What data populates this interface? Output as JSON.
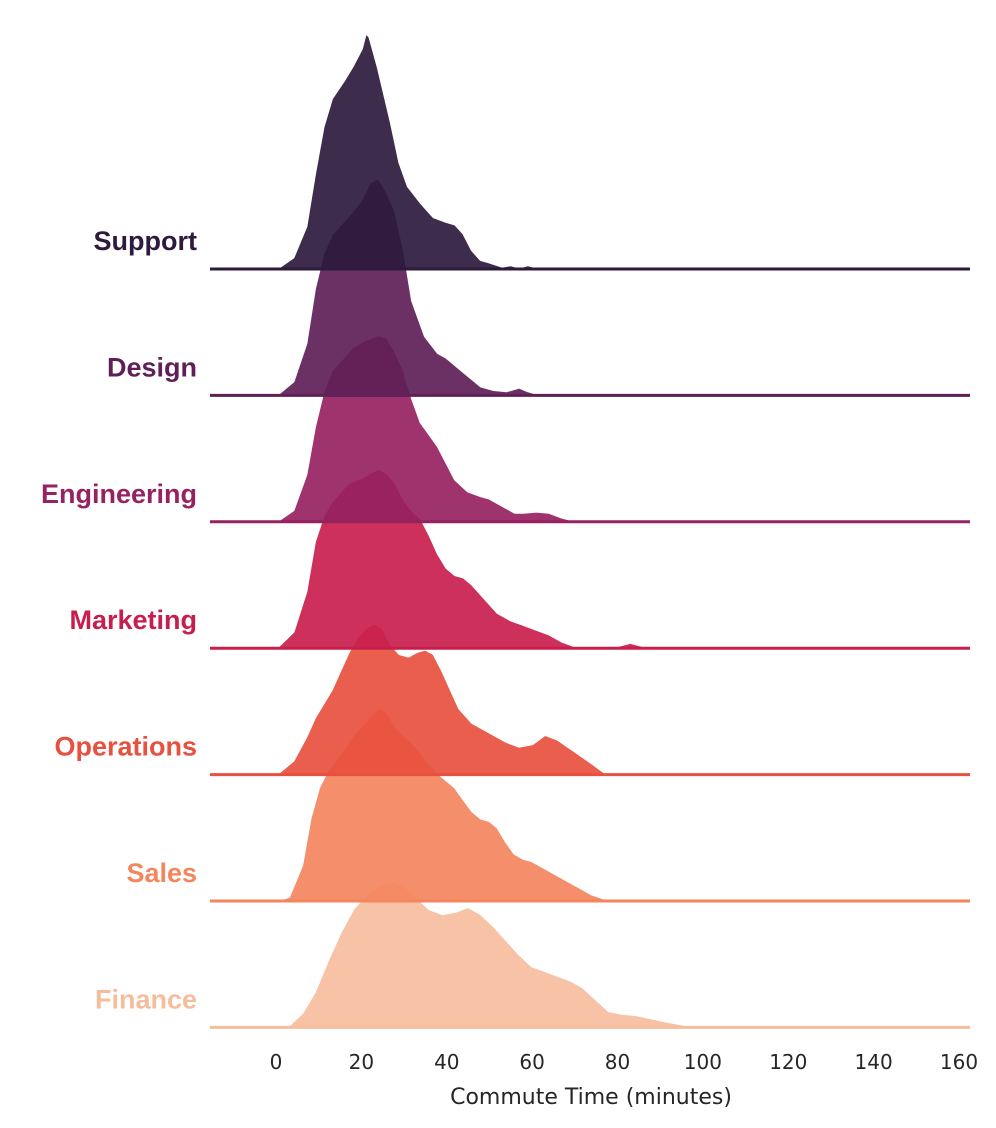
{
  "chart_data": {
    "type": "area",
    "subtype": "ridgeline-kde",
    "xlabel": "Commute Time (minutes)",
    "xlim": [
      -15,
      162
    ],
    "xticks": [
      0,
      20,
      40,
      60,
      80,
      100,
      120,
      140,
      160
    ],
    "y_density_max": 1.0,
    "grid": false,
    "legend": "none",
    "series": [
      {
        "name": "Support",
        "color": "#2d1a3c",
        "points": [
          [
            -15,
            0
          ],
          [
            0,
            0
          ],
          [
            4,
            0.05
          ],
          [
            7,
            0.18
          ],
          [
            9,
            0.4
          ],
          [
            11,
            0.6
          ],
          [
            13,
            0.72
          ],
          [
            16,
            0.8
          ],
          [
            18,
            0.86
          ],
          [
            20,
            0.93
          ],
          [
            21,
            1.0
          ],
          [
            22,
            0.98
          ],
          [
            24,
            0.85
          ],
          [
            27,
            0.62
          ],
          [
            29,
            0.45
          ],
          [
            31,
            0.35
          ],
          [
            34,
            0.28
          ],
          [
            37,
            0.22
          ],
          [
            40,
            0.2
          ],
          [
            42,
            0.19
          ],
          [
            44,
            0.15
          ],
          [
            46,
            0.08
          ],
          [
            48,
            0.04
          ],
          [
            50,
            0.03
          ],
          [
            53,
            0.012
          ],
          [
            55,
            0.018
          ],
          [
            57,
            0.008
          ],
          [
            59,
            0.018
          ],
          [
            62,
            0.004
          ],
          [
            64,
            0
          ],
          [
            162,
            0
          ]
        ]
      },
      {
        "name": "Design",
        "color": "#5f1f57",
        "points": [
          [
            -15,
            0
          ],
          [
            0,
            0
          ],
          [
            4,
            0.06
          ],
          [
            7,
            0.22
          ],
          [
            9,
            0.45
          ],
          [
            11,
            0.6
          ],
          [
            13,
            0.68
          ],
          [
            16,
            0.74
          ],
          [
            18,
            0.78
          ],
          [
            20,
            0.83
          ],
          [
            22,
            0.9
          ],
          [
            24,
            0.92
          ],
          [
            26,
            0.86
          ],
          [
            28,
            0.78
          ],
          [
            30,
            0.62
          ],
          [
            32,
            0.4
          ],
          [
            35,
            0.25
          ],
          [
            38,
            0.18
          ],
          [
            40,
            0.16
          ],
          [
            42,
            0.13
          ],
          [
            44,
            0.1
          ],
          [
            46,
            0.07
          ],
          [
            48,
            0.04
          ],
          [
            51,
            0.025
          ],
          [
            54,
            0.02
          ],
          [
            57,
            0.035
          ],
          [
            59,
            0.02
          ],
          [
            62,
            0.004
          ],
          [
            64,
            0
          ],
          [
            162,
            0
          ]
        ]
      },
      {
        "name": "Engineering",
        "color": "#962261",
        "points": [
          [
            -15,
            0
          ],
          [
            0,
            0
          ],
          [
            4,
            0.05
          ],
          [
            7,
            0.2
          ],
          [
            9,
            0.4
          ],
          [
            11,
            0.55
          ],
          [
            13,
            0.64
          ],
          [
            16,
            0.7
          ],
          [
            18,
            0.74
          ],
          [
            21,
            0.77
          ],
          [
            24,
            0.79
          ],
          [
            26,
            0.78
          ],
          [
            28,
            0.72
          ],
          [
            30,
            0.64
          ],
          [
            32,
            0.52
          ],
          [
            34,
            0.42
          ],
          [
            36,
            0.37
          ],
          [
            38,
            0.32
          ],
          [
            40,
            0.25
          ],
          [
            42,
            0.18
          ],
          [
            45,
            0.13
          ],
          [
            48,
            0.11
          ],
          [
            50,
            0.1
          ],
          [
            53,
            0.07
          ],
          [
            56,
            0.04
          ],
          [
            58,
            0.04
          ],
          [
            61,
            0.045
          ],
          [
            64,
            0.04
          ],
          [
            67,
            0.02
          ],
          [
            70,
            0.005
          ],
          [
            74,
            0
          ],
          [
            120,
            0.004
          ],
          [
            162,
            0
          ]
        ]
      },
      {
        "name": "Marketing",
        "color": "#c81e4d",
        "points": [
          [
            -15,
            0
          ],
          [
            0,
            0
          ],
          [
            4,
            0.07
          ],
          [
            7,
            0.24
          ],
          [
            9,
            0.45
          ],
          [
            11,
            0.56
          ],
          [
            13,
            0.62
          ],
          [
            15,
            0.66
          ],
          [
            17,
            0.7
          ],
          [
            20,
            0.72
          ],
          [
            22,
            0.74
          ],
          [
            24,
            0.76
          ],
          [
            26,
            0.74
          ],
          [
            28,
            0.7
          ],
          [
            30,
            0.63
          ],
          [
            32,
            0.58
          ],
          [
            34,
            0.55
          ],
          [
            36,
            0.48
          ],
          [
            38,
            0.4
          ],
          [
            40,
            0.34
          ],
          [
            42,
            0.31
          ],
          [
            44,
            0.3
          ],
          [
            46,
            0.27
          ],
          [
            48,
            0.23
          ],
          [
            50,
            0.19
          ],
          [
            52,
            0.15
          ],
          [
            55,
            0.12
          ],
          [
            58,
            0.1
          ],
          [
            61,
            0.08
          ],
          [
            64,
            0.06
          ],
          [
            67,
            0.03
          ],
          [
            70,
            0.01
          ],
          [
            74,
            0.002
          ],
          [
            78,
            0.002
          ],
          [
            81,
            0.015
          ],
          [
            83,
            0.025
          ],
          [
            85,
            0.015
          ],
          [
            88,
            0.002
          ],
          [
            90,
            0
          ],
          [
            162,
            0
          ]
        ]
      },
      {
        "name": "Operations",
        "color": "#e8503f",
        "points": [
          [
            -15,
            0
          ],
          [
            -5,
            0
          ],
          [
            0,
            0
          ],
          [
            4,
            0.06
          ],
          [
            7,
            0.16
          ],
          [
            9,
            0.24
          ],
          [
            11,
            0.3
          ],
          [
            13,
            0.36
          ],
          [
            15,
            0.44
          ],
          [
            17,
            0.52
          ],
          [
            19,
            0.58
          ],
          [
            21,
            0.62
          ],
          [
            23,
            0.64
          ],
          [
            25,
            0.62
          ],
          [
            27,
            0.55
          ],
          [
            29,
            0.51
          ],
          [
            31,
            0.5
          ],
          [
            33,
            0.52
          ],
          [
            35,
            0.53
          ],
          [
            37,
            0.51
          ],
          [
            39,
            0.44
          ],
          [
            41,
            0.36
          ],
          [
            43,
            0.28
          ],
          [
            46,
            0.22
          ],
          [
            50,
            0.18
          ],
          [
            54,
            0.14
          ],
          [
            57,
            0.12
          ],
          [
            60,
            0.13
          ],
          [
            63,
            0.17
          ],
          [
            66,
            0.15
          ],
          [
            70,
            0.1
          ],
          [
            74,
            0.05
          ],
          [
            77,
            0.01
          ],
          [
            80,
            0
          ],
          [
            162,
            0
          ]
        ]
      },
      {
        "name": "Sales",
        "color": "#f4865e",
        "points": [
          [
            -15,
            0
          ],
          [
            0,
            0
          ],
          [
            3,
            0.02
          ],
          [
            6,
            0.15
          ],
          [
            8,
            0.35
          ],
          [
            10,
            0.48
          ],
          [
            12,
            0.55
          ],
          [
            14,
            0.6
          ],
          [
            16,
            0.65
          ],
          [
            18,
            0.7
          ],
          [
            20,
            0.74
          ],
          [
            22,
            0.78
          ],
          [
            24,
            0.82
          ],
          [
            26,
            0.8
          ],
          [
            28,
            0.74
          ],
          [
            30,
            0.7
          ],
          [
            32,
            0.67
          ],
          [
            34,
            0.63
          ],
          [
            36,
            0.58
          ],
          [
            38,
            0.54
          ],
          [
            40,
            0.51
          ],
          [
            42,
            0.48
          ],
          [
            44,
            0.43
          ],
          [
            46,
            0.38
          ],
          [
            48,
            0.35
          ],
          [
            50,
            0.34
          ],
          [
            52,
            0.31
          ],
          [
            54,
            0.25
          ],
          [
            56,
            0.2
          ],
          [
            58,
            0.18
          ],
          [
            60,
            0.17
          ],
          [
            63,
            0.14
          ],
          [
            66,
            0.11
          ],
          [
            70,
            0.07
          ],
          [
            74,
            0.03
          ],
          [
            78,
            0.005
          ],
          [
            82,
            0
          ],
          [
            162,
            0
          ]
        ]
      },
      {
        "name": "Finance",
        "color": "#f6bd9d",
        "points": [
          [
            -15,
            0
          ],
          [
            0,
            0
          ],
          [
            3,
            0.01
          ],
          [
            6,
            0.06
          ],
          [
            9,
            0.15
          ],
          [
            12,
            0.28
          ],
          [
            15,
            0.4
          ],
          [
            18,
            0.5
          ],
          [
            21,
            0.56
          ],
          [
            24,
            0.6
          ],
          [
            27,
            0.62
          ],
          [
            30,
            0.6
          ],
          [
            33,
            0.55
          ],
          [
            36,
            0.5
          ],
          [
            39,
            0.48
          ],
          [
            42,
            0.49
          ],
          [
            45,
            0.51
          ],
          [
            48,
            0.48
          ],
          [
            51,
            0.43
          ],
          [
            54,
            0.37
          ],
          [
            57,
            0.31
          ],
          [
            60,
            0.26
          ],
          [
            63,
            0.24
          ],
          [
            66,
            0.22
          ],
          [
            69,
            0.2
          ],
          [
            72,
            0.17
          ],
          [
            75,
            0.12
          ],
          [
            78,
            0.07
          ],
          [
            81,
            0.06
          ],
          [
            84,
            0.055
          ],
          [
            88,
            0.04
          ],
          [
            92,
            0.025
          ],
          [
            96,
            0.012
          ],
          [
            100,
            0.006
          ],
          [
            110,
            0.004
          ],
          [
            162,
            0
          ]
        ]
      }
    ]
  }
}
